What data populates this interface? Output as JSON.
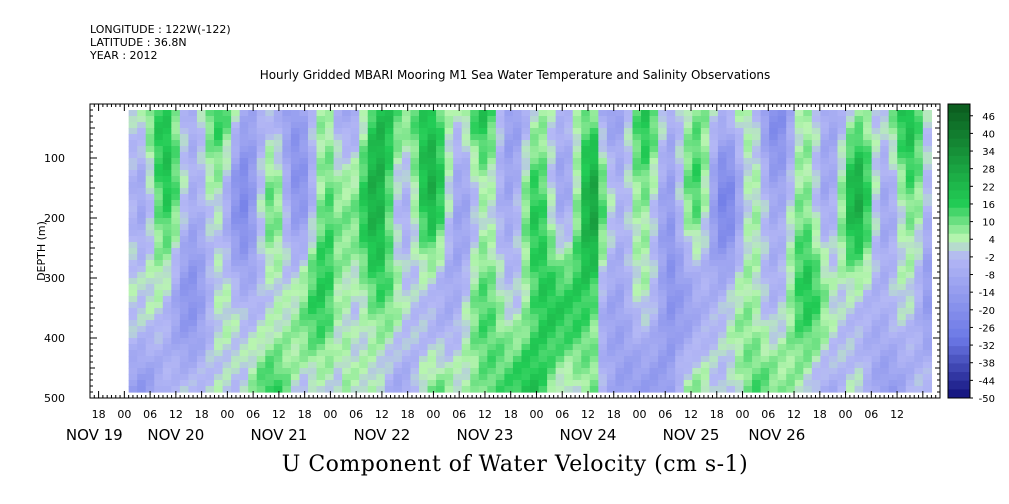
{
  "header": {
    "longitude": "LONGITUDE : 122W(-122)",
    "latitude": "LATITUDE : 36.8N",
    "year": "YEAR : 2012"
  },
  "chart_data": {
    "type": "heatmap",
    "title": "Hourly Gridded MBARI Mooring M1 Sea Water Temperature and Salinity Observations",
    "variable_title": "U Component of Water Velocity (cm s-1)",
    "ylabel": "DEPTH (m)",
    "xlabel": "",
    "ylim": [
      500,
      10
    ],
    "y_ticks": [
      100,
      200,
      300,
      400,
      500
    ],
    "x_range_hours": [
      -8,
      190
    ],
    "data_range_hours": [
      1,
      188
    ],
    "data_depth_range": [
      20,
      490
    ],
    "hour_tick_labels": [
      "18",
      "00",
      "06",
      "12",
      "18",
      "00",
      "06",
      "12",
      "18",
      "00",
      "06",
      "12",
      "18",
      "00",
      "06",
      "12",
      "18",
      "00",
      "06",
      "12",
      "18",
      "00",
      "06",
      "12",
      "18",
      "00",
      "06",
      "12",
      "18",
      "00",
      "06",
      "12"
    ],
    "hour_tick_hours": [
      -6,
      0,
      6,
      12,
      18,
      24,
      30,
      36,
      42,
      48,
      54,
      60,
      66,
      72,
      78,
      84,
      90,
      96,
      102,
      108,
      114,
      120,
      126,
      132,
      138,
      144,
      150,
      156,
      162,
      168,
      174,
      180
    ],
    "date_labels": [
      "NOV 19",
      "NOV 20",
      "NOV 21",
      "NOV 22",
      "NOV 23",
      "NOV 24",
      "NOV 25",
      "NOV 26"
    ],
    "date_label_hours": [
      -7,
      12,
      36,
      60,
      84,
      108,
      132,
      152
    ],
    "colorbar_labels": [
      "46",
      "40",
      "34",
      "28",
      "22",
      "16",
      "10",
      "4",
      "-2",
      "-8",
      "-14",
      "-20",
      "-26",
      "-32",
      "-38",
      "-44",
      "-50"
    ],
    "colorbar_levels": [
      46,
      40,
      34,
      28,
      22,
      16,
      10,
      4,
      -2,
      -8,
      -14,
      -20,
      -26,
      -32,
      -38,
      -44,
      -50
    ],
    "colorbar_range": [
      -50,
      50
    ],
    "colors": {
      "strong_positive": "#0b5a1e",
      "positive": "#22cc55",
      "weak_positive": "#b8f5b0",
      "weak_negative": "#b4b8f5",
      "negative": "#6b78e6",
      "strong_negative": "#10107a"
    },
    "grid": false
  }
}
